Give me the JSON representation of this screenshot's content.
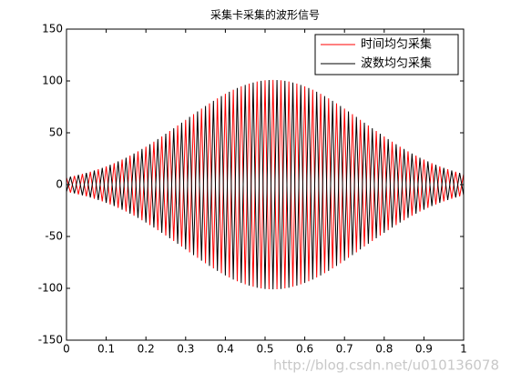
{
  "chart_data": {
    "type": "line",
    "title": "采集卡采集的波形信号",
    "x": [
      0,
      0.01,
      0.02,
      0.03,
      0.04,
      0.05,
      0.06,
      0.07,
      0.08,
      0.09,
      0.1,
      0.11,
      0.12,
      0.13,
      0.14,
      0.15,
      0.16,
      0.17,
      0.18,
      0.19,
      0.2,
      0.21,
      0.22,
      0.23,
      0.24,
      0.25,
      0.26,
      0.27,
      0.28,
      0.29,
      0.3,
      0.31,
      0.32,
      0.33,
      0.34,
      0.35,
      0.36,
      0.37,
      0.38,
      0.39,
      0.4,
      0.41,
      0.42,
      0.43,
      0.44,
      0.45,
      0.46,
      0.47,
      0.48,
      0.49,
      0.5,
      0.51,
      0.52,
      0.53,
      0.54,
      0.55,
      0.56,
      0.57,
      0.58,
      0.59,
      0.6,
      0.61,
      0.62,
      0.63,
      0.64,
      0.65,
      0.66,
      0.67,
      0.68,
      0.69,
      0.7,
      0.71,
      0.72,
      0.73,
      0.74,
      0.75,
      0.76,
      0.77,
      0.78,
      0.79,
      0.8,
      0.81,
      0.82,
      0.83,
      0.84,
      0.85,
      0.86,
      0.87,
      0.88,
      0.89,
      0.9,
      0.91,
      0.92,
      0.93,
      0.94,
      0.95,
      0.96,
      0.97,
      0.98,
      0.99,
      1
    ],
    "series": [
      {
        "name": "时间均匀采集",
        "color": "#ff0000",
        "values": [
          6.9,
          -7.7,
          8.5,
          -9.4,
          10.3,
          -11.3,
          12.4,
          -13.6,
          14.9,
          -16.2,
          17.6,
          -19.1,
          20.7,
          -22.4,
          24.2,
          -26.0,
          28.0,
          -30.0,
          32.1,
          -34.4,
          36.6,
          -39.0,
          41.4,
          -43.9,
          46.5,
          -49.1,
          51.7,
          -54.4,
          57.1,
          -59.8,
          62.5,
          -65.3,
          68.0,
          -70.6,
          73.3,
          -75.9,
          78.4,
          -80.8,
          83.2,
          -85.4,
          87.6,
          -89.6,
          91.5,
          -93.2,
          94.8,
          -96.2,
          97.5,
          -98.5,
          99.4,
          -100.1,
          100.6,
          -100.9,
          101,
          -100.9,
          100.6,
          -100.1,
          99.4,
          -98.5,
          97.5,
          -96.2,
          94.8,
          -93.2,
          91.5,
          -89.6,
          87.6,
          -85.4,
          83.2,
          -80.8,
          78.4,
          -75.9,
          73.3,
          -70.6,
          68.0,
          -65.3,
          62.5,
          -59.8,
          57.1,
          -54.4,
          51.7,
          -49.1,
          46.5,
          -43.9,
          41.4,
          -39.0,
          36.6,
          -34.4,
          32.1,
          -30.0,
          28.0,
          -26.0,
          24.2,
          -22.4,
          20.7,
          -19.1,
          17.6,
          -16.2,
          14.9,
          -13.6,
          12.4,
          -11.3,
          10.3
        ]
      },
      {
        "name": "波数均匀采集",
        "color": "#000000",
        "values": [
          -6.9,
          7.7,
          -8.5,
          9.4,
          -10.3,
          11.3,
          -12.4,
          13.6,
          -14.9,
          16.2,
          -17.6,
          19.1,
          -20.7,
          22.4,
          -24.2,
          26.0,
          -28.0,
          30.0,
          -32.1,
          34.4,
          -36.6,
          39.0,
          -41.4,
          43.9,
          -46.5,
          49.1,
          -51.7,
          54.4,
          -57.1,
          59.8,
          -62.5,
          65.3,
          -68.0,
          70.6,
          -73.3,
          75.9,
          -78.4,
          80.8,
          -83.2,
          85.4,
          -87.6,
          89.6,
          -91.5,
          93.2,
          -94.8,
          96.2,
          -97.5,
          98.5,
          -99.4,
          100.1,
          -100.6,
          100.9,
          -101,
          100.9,
          -100.6,
          100.1,
          -99.4,
          98.5,
          -97.5,
          96.2,
          -94.8,
          93.2,
          -91.5,
          89.6,
          -87.6,
          85.4,
          -83.2,
          80.8,
          -78.4,
          75.9,
          -73.3,
          70.6,
          -68.0,
          65.3,
          -62.5,
          59.8,
          -57.1,
          54.4,
          -51.7,
          49.1,
          -46.5,
          43.9,
          -41.4,
          39.0,
          -36.6,
          34.4,
          -32.1,
          30.0,
          -28.0,
          26.0,
          -24.2,
          22.4,
          -20.7,
          19.1,
          -17.6,
          16.2,
          -14.9,
          13.6,
          -12.4,
          11.3,
          -10.3
        ]
      }
    ],
    "xlim": [
      0,
      1
    ],
    "xticks": [
      0,
      0.1,
      0.2,
      0.3,
      0.4,
      0.5,
      0.6,
      0.7,
      0.8,
      0.9,
      1
    ],
    "ylim": [
      -150,
      150
    ],
    "yticks": [
      -150,
      -100,
      -50,
      0,
      50,
      100,
      150
    ],
    "grid": false,
    "legend": "upper right",
    "watermark": "http://blog.csdn.net/u010136078"
  }
}
